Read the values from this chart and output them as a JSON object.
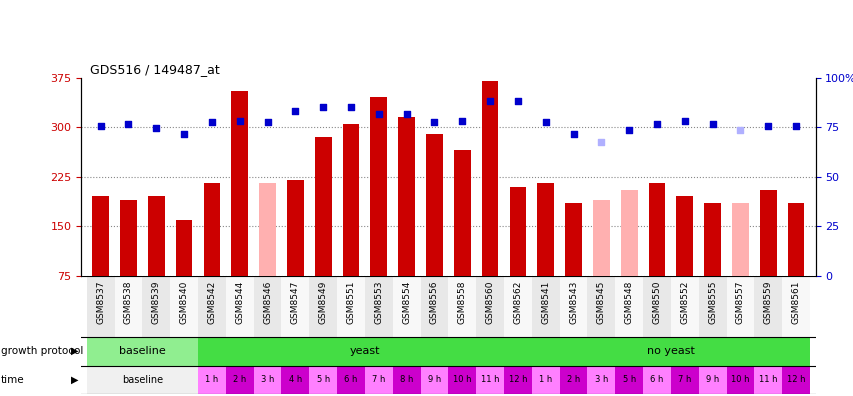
{
  "title": "GDS516 / 149487_at",
  "samples": [
    "GSM8537",
    "GSM8538",
    "GSM8539",
    "GSM8540",
    "GSM8542",
    "GSM8544",
    "GSM8546",
    "GSM8547",
    "GSM8549",
    "GSM8551",
    "GSM8553",
    "GSM8554",
    "GSM8556",
    "GSM8558",
    "GSM8560",
    "GSM8562",
    "GSM8541",
    "GSM8543",
    "GSM8545",
    "GSM8548",
    "GSM8550",
    "GSM8552",
    "GSM8555",
    "GSM8557",
    "GSM8559",
    "GSM8561"
  ],
  "count_values": [
    195,
    190,
    195,
    160,
    215,
    355,
    215,
    220,
    285,
    305,
    345,
    315,
    290,
    265,
    370,
    210,
    215,
    185,
    190,
    205,
    215,
    195,
    185,
    185,
    205,
    185
  ],
  "count_absent": [
    false,
    false,
    false,
    false,
    false,
    false,
    true,
    false,
    false,
    false,
    false,
    false,
    false,
    false,
    false,
    false,
    false,
    false,
    true,
    true,
    false,
    false,
    false,
    true,
    false,
    false
  ],
  "rank_values": [
    302,
    305,
    298,
    290,
    307,
    310,
    308,
    325,
    330,
    330,
    320,
    320,
    307,
    310,
    340,
    340,
    308,
    290,
    278,
    295,
    305,
    310,
    305,
    295,
    302,
    302
  ],
  "rank_absent": [
    false,
    false,
    false,
    false,
    false,
    false,
    false,
    false,
    false,
    false,
    false,
    false,
    false,
    false,
    false,
    false,
    false,
    false,
    true,
    false,
    false,
    false,
    false,
    true,
    false,
    false
  ],
  "ylim_left": [
    75,
    375
  ],
  "ylim_right": [
    0,
    100
  ],
  "yticks_left": [
    75,
    150,
    225,
    300,
    375
  ],
  "yticks_right": [
    0,
    25,
    50,
    75,
    100
  ],
  "bar_color_present": "#cc0000",
  "bar_color_absent": "#ffb0b0",
  "dot_color_present": "#0000cc",
  "dot_color_absent": "#b0b0ff",
  "baseline_gp_color": "#90ee90",
  "yeast_gp_color": "#44dd44",
  "noyeast_gp_color": "#44dd44",
  "time_color_light": "#ff80ff",
  "time_color_dark": "#cc00cc",
  "grid_dotted_color": "#888888",
  "yeast_times": [
    "1 h",
    "2 h",
    "3 h",
    "4 h",
    "5 h",
    "6 h",
    "7 h",
    "8 h",
    "9 h",
    "10 h",
    "11 h",
    "12 h"
  ],
  "noyeast_times": [
    "1 h",
    "2 h",
    "3 h",
    "5 h",
    "6 h",
    "7 h",
    "9 h",
    "10 h",
    "11 h",
    "12 h"
  ]
}
